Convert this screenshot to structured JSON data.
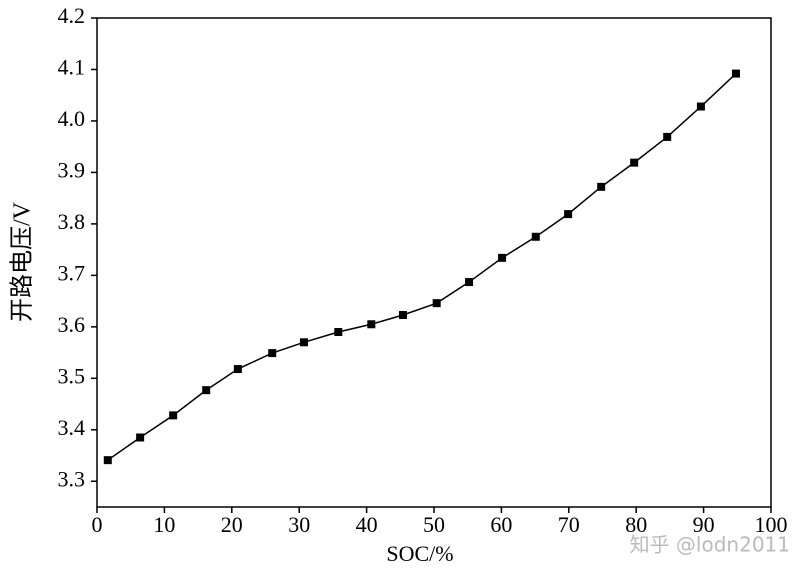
{
  "chart_data": {
    "type": "line",
    "xlabel": "SOC/%",
    "ylabel": "开路电压/V",
    "watermark": "知乎 @lodn2011",
    "x": [
      1.6,
      6.4,
      11.3,
      16.2,
      20.9,
      26.0,
      30.7,
      35.8,
      40.7,
      45.4,
      50.4,
      55.2,
      60.1,
      65.1,
      69.9,
      74.8,
      79.7,
      84.6,
      89.6,
      94.8
    ],
    "series": [
      {
        "color": "#000000",
        "values": [
          3.341,
          3.385,
          3.428,
          3.477,
          3.518,
          3.549,
          3.57,
          3.59,
          3.605,
          3.623,
          3.646,
          3.687,
          3.734,
          3.775,
          3.819,
          3.872,
          3.919,
          3.969,
          4.028,
          4.092
        ]
      }
    ],
    "xlim": [
      0,
      100
    ],
    "xticks": [
      0,
      10,
      20,
      30,
      40,
      50,
      60,
      70,
      80,
      90,
      100
    ],
    "ylim": [
      3.25,
      4.2
    ],
    "yticks": [
      3.3,
      3.4,
      3.5,
      3.6,
      3.7,
      3.8,
      3.9,
      {
        "value": 4,
        "label": "4.0"
      },
      4.1,
      4.2
    ],
    "marker": "square"
  }
}
